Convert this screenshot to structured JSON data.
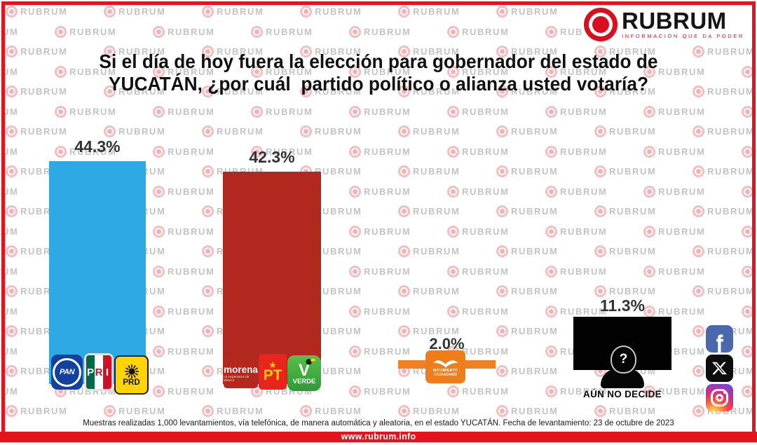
{
  "brand": {
    "name": "RUBRUM",
    "tagline": "INFORMACIÓN QUE DA PODER",
    "watermark_text": "RUBRUM",
    "accent_red": "#E5131C"
  },
  "title": {
    "line1": "Si el día de hoy fuera la elección para gobernador del estado de",
    "line2": "YUCATÁN, ¿por cuál  partido político o alianza usted votaría?"
  },
  "chart_data": {
    "type": "bar",
    "title": "Si el día de hoy fuera la elección para gobernador del estado de YUCATÁN, ¿por cuál partido político o alianza usted votaría?",
    "categories": [
      "PAN / PRI / PRD",
      "MORENA / PT / VERDE",
      "MOVIMIENTO CIUDADANO",
      "AÚN NO DECIDE"
    ],
    "values": [
      44.3,
      42.3,
      2.0,
      11.3
    ],
    "value_labels": [
      "44.3%",
      "42.3%",
      "2.0%",
      "11.3%"
    ],
    "unit": "percent",
    "colors": [
      "#2FA9E4",
      "#B2281F",
      "#EF8122",
      "#000000"
    ],
    "ylim": [
      0,
      50
    ],
    "legend": false,
    "grid": false
  },
  "party_logos": {
    "pan": "PAN",
    "pri_letters": [
      "P",
      "R",
      "I"
    ],
    "prd": "PRD",
    "morena": "morena",
    "morena_tagline": "La esperanza de México",
    "pt_star": "★",
    "pt": "PT",
    "verde": "VERDE",
    "mc_line1": "MOVIMIENTO",
    "mc_line2": "CIUDADANO"
  },
  "undecided": {
    "mark": "?",
    "label": "AÚN NO DECIDE"
  },
  "social": {
    "icons": [
      "facebook-icon",
      "x-icon",
      "instagram-icon"
    ]
  },
  "footer": {
    "note": "Muestras realizadas 1,000 levantamientos, vía telefónica, de manera automática y aleatoria, en el estado YUCATÁN. Fecha de levantamiento: 23 de octubre de 2023",
    "website": "www.rubrum.info"
  }
}
